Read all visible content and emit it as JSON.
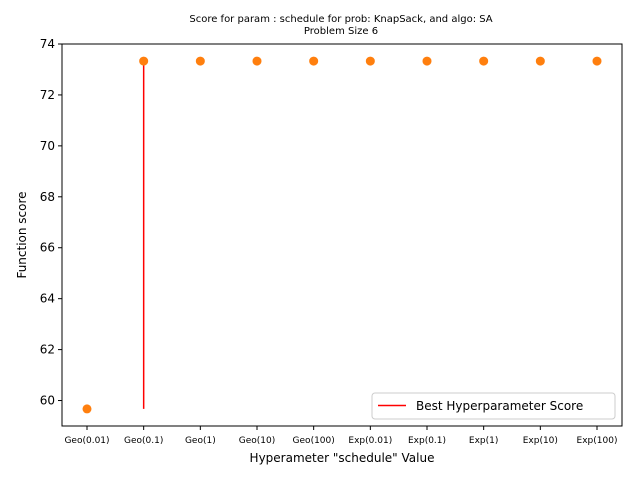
{
  "chart_data": {
    "type": "scatter",
    "title": "Score for param : schedule for prob: KnapSack, and algo: SA",
    "subtitle": "Problem Size 6",
    "xlabel": "Hyperameter \"schedule\" Value",
    "ylabel": "Function score",
    "categories": [
      "Geo(0.01)",
      "Geo(0.1)",
      "Geo(1)",
      "Geo(10)",
      "Geo(100)",
      "Exp(0.01)",
      "Exp(0.1)",
      "Exp(1)",
      "Exp(10)",
      "Exp(100)"
    ],
    "series": [
      {
        "values": [
          59.67,
          73.33,
          73.33,
          73.33,
          73.33,
          73.33,
          73.33,
          73.33,
          73.33,
          73.33
        ],
        "color": "#ff7f0e",
        "marker": "circle"
      }
    ],
    "best_line": {
      "label": "Best Hyperparameter Score",
      "category": "Geo(0.1)",
      "y_from": 59.67,
      "y_to": 73.33,
      "color": "#ff0000"
    },
    "yticks": [
      60,
      62,
      64,
      66,
      68,
      70,
      72,
      74
    ],
    "ylim": [
      59.0,
      74.0
    ],
    "grid": false,
    "legend": {
      "position": "lower-right",
      "entries": [
        "Best Hyperparameter Score"
      ]
    }
  }
}
